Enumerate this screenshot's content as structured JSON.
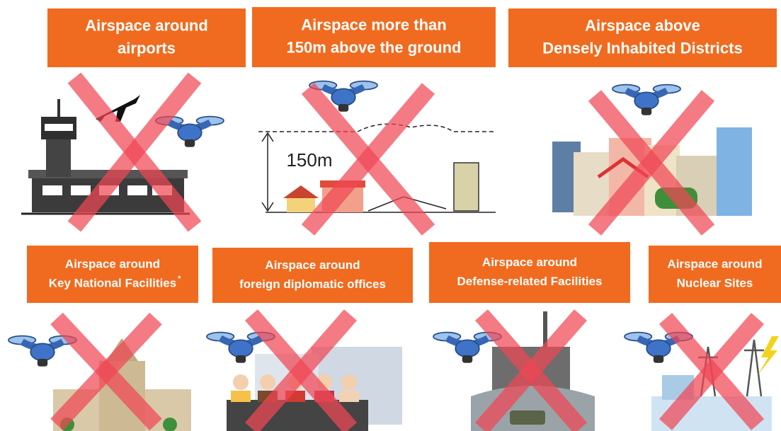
{
  "top_row": [
    {
      "lines": [
        "Airspace around",
        "airports"
      ]
    },
    {
      "lines": [
        "Airspace more than",
        "150m above the ground"
      ]
    },
    {
      "lines": [
        "Airspace above",
        "Densely Inhabited Districts"
      ]
    }
  ],
  "height_label": "150m",
  "bottom_row": [
    {
      "lines": [
        "Airspace around",
        "Key National Facilities"
      ],
      "note_mark": "*"
    },
    {
      "lines": [
        "Airspace around",
        "foreign diplomatic offices"
      ]
    },
    {
      "lines": [
        "Airspace around",
        "Defense-related Facilities"
      ]
    },
    {
      "lines": [
        "Airspace around",
        "Nuclear Sites"
      ]
    }
  ]
}
